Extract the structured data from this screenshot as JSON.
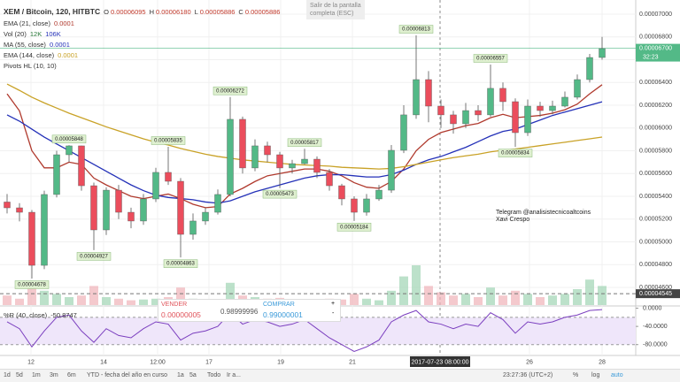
{
  "chart_data": [
    {
      "type": "candlestick",
      "title": "XEM / Bitcoin, 120, HITBTC",
      "ohlc_legend": [
        {
          "key": "O",
          "text": "0.00006095"
        },
        {
          "key": "H",
          "text": "0.00006180"
        },
        {
          "key": "L",
          "text": "0.00005886"
        },
        {
          "key": "C",
          "text": "0.00005886"
        }
      ],
      "open": [
        5.35e-05,
        5.299e-05,
        5.26e-05,
        4.794e-05,
        5.416e-05,
        5.765e-05,
        5.843e-05,
        5.493e-05,
        5.105e-05,
        5.454e-05,
        5.26e-05,
        5.183e-05,
        5.377e-05,
        5.61e-05,
        5.532e-05,
        5.066e-05,
        5.183e-05,
        5.26e-05,
        5.416e-05,
        6.076e-05,
        5.649e-05,
        5.843e-05,
        5.765e-05,
        5.649e-05,
        5.687e-05,
        5.726e-05,
        5.61e-05,
        5.493e-05,
        5.377e-05,
        5.26e-05,
        5.377e-05,
        5.454e-05,
        5.804e-05,
        6.115e-05,
        6.425e-05,
        6.192e-05,
        6.115e-05,
        6.037e-05,
        6.153e-05,
        6.115e-05,
        6.348e-05,
        6.231e-05,
        5.959e-05,
        6.192e-05,
        6.153e-05,
        6.192e-05,
        6.27e-05,
        6.425e-05,
        6.619e-05
      ],
      "high": [
        5.42e-05,
        5.34e-05,
        5.28e-05,
        5.45e-05,
        5.8e-05,
        5.848e-05,
        5.845e-05,
        5.52e-05,
        5.48e-05,
        5.5e-05,
        5.3e-05,
        5.42e-05,
        5.65e-05,
        5.835e-05,
        5.56e-05,
        5.25e-05,
        5.3e-05,
        5.46e-05,
        6.272e-05,
        6.1e-05,
        5.9e-05,
        5.88e-05,
        5.79e-05,
        5.72e-05,
        5.817e-05,
        5.75e-05,
        5.64e-05,
        5.51e-05,
        5.4e-05,
        5.42e-05,
        5.5e-05,
        5.85e-05,
        6.2e-05,
        6.813e-05,
        6.5e-05,
        6.25e-05,
        6.15e-05,
        6.22e-05,
        6.2e-05,
        6.557e-05,
        6.4e-05,
        6.26e-05,
        6.25e-05,
        6.23e-05,
        6.24e-05,
        6.32e-05,
        6.47e-05,
        6.65e-05,
        6.8e-05
      ],
      "low": [
        5.25e-05,
        5.18e-05,
        4.678e-05,
        4.76e-05,
        5.39e-05,
        5.7e-05,
        5.45e-05,
        4.927e-05,
        5.06e-05,
        5.2e-05,
        5.12e-05,
        5.15e-05,
        5.35e-05,
        5.5e-05,
        4.863e-05,
        5.02e-05,
        5.15e-05,
        5.24e-05,
        5.4e-05,
        5.6e-05,
        5.62e-05,
        5.7e-05,
        5.473e-05,
        5.6e-05,
        5.68e-05,
        5.56e-05,
        5.45e-05,
        5.32e-05,
        5.184e-05,
        5.23e-05,
        5.36e-05,
        5.43e-05,
        5.78e-05,
        6.08e-05,
        6.05e-05,
        6e-05,
        5.95e-05,
        6e-05,
        6.06e-05,
        6.1e-05,
        6.15e-05,
        5.834e-05,
        5.93e-05,
        6.1e-05,
        6.12e-05,
        6.18e-05,
        6.25e-05,
        6.4e-05,
        6.6e-05
      ],
      "close": [
        5.299e-05,
        5.26e-05,
        4.794e-05,
        5.416e-05,
        5.765e-05,
        5.843e-05,
        5.493e-05,
        5.105e-05,
        5.454e-05,
        5.26e-05,
        5.183e-05,
        5.377e-05,
        5.61e-05,
        5.532e-05,
        5.066e-05,
        5.183e-05,
        5.26e-05,
        5.416e-05,
        6.076e-05,
        5.649e-05,
        5.843e-05,
        5.765e-05,
        5.649e-05,
        5.687e-05,
        5.726e-05,
        5.61e-05,
        5.493e-05,
        5.377e-05,
        5.26e-05,
        5.377e-05,
        5.454e-05,
        5.804e-05,
        6.115e-05,
        6.425e-05,
        6.192e-05,
        6.115e-05,
        6.037e-05,
        6.153e-05,
        6.115e-05,
        6.348e-05,
        6.231e-05,
        5.959e-05,
        6.192e-05,
        6.153e-05,
        6.192e-05,
        6.27e-05,
        6.425e-05,
        6.619e-05,
        6.697e-05
      ],
      "up_color": "#53b987",
      "down_color": "#eb4d5c",
      "volume_name": "Vol (20)",
      "volume_legend": [
        "12K",
        "106K"
      ],
      "volume": [
        60000,
        40000,
        150000,
        90000,
        70000,
        50000,
        60000,
        120000,
        50000,
        40000,
        30000,
        35000,
        40000,
        50000,
        110000,
        40000,
        30000,
        35000,
        140000,
        60000,
        50000,
        40000,
        45000,
        30000,
        35000,
        30000,
        40000,
        35000,
        70000,
        40000,
        30000,
        90000,
        180000,
        250000,
        120000,
        80000,
        60000,
        70000,
        50000,
        110000,
        60000,
        90000,
        70000,
        50000,
        60000,
        70000,
        100000,
        160000,
        120000
      ],
      "series": [
        {
          "name": "EMA (21, close)",
          "legend_value": "0.0001",
          "color": "#b03a2e",
          "values": [
            6.3e-05,
            6.15e-05,
            5.8e-05,
            5.65e-05,
            5.65e-05,
            5.7e-05,
            5.68e-05,
            5.56e-05,
            5.5e-05,
            5.45e-05,
            5.4e-05,
            5.38e-05,
            5.4e-05,
            5.42e-05,
            5.38e-05,
            5.33e-05,
            5.3e-05,
            5.31e-05,
            5.42e-05,
            5.47e-05,
            5.53e-05,
            5.58e-05,
            5.6e-05,
            5.62e-05,
            5.64e-05,
            5.64e-05,
            5.62e-05,
            5.58e-05,
            5.52e-05,
            5.48e-05,
            5.47e-05,
            5.53e-05,
            5.64e-05,
            5.8e-05,
            5.9e-05,
            5.96e-05,
            5.99e-05,
            6.02e-05,
            6.04e-05,
            6.09e-05,
            6.12e-05,
            6.09e-05,
            6.1e-05,
            6.11e-05,
            6.13e-05,
            6.16e-05,
            6.21e-05,
            6.3e-05,
            6.38e-05
          ]
        },
        {
          "name": "MA (55, close)",
          "legend_value": "0.0001",
          "color": "#2431b8",
          "values": [
            6.115e-05,
            6.06e-05,
            5.99e-05,
            5.92e-05,
            5.86e-05,
            5.8e-05,
            5.74e-05,
            5.68e-05,
            5.62e-05,
            5.56e-05,
            5.5e-05,
            5.45e-05,
            5.41e-05,
            5.39e-05,
            5.38e-05,
            5.37e-05,
            5.35e-05,
            5.34e-05,
            5.36e-05,
            5.4e-05,
            5.44e-05,
            5.47e-05,
            5.5e-05,
            5.53e-05,
            5.56e-05,
            5.58e-05,
            5.59e-05,
            5.59e-05,
            5.58e-05,
            5.57e-05,
            5.57e-05,
            5.59e-05,
            5.63e-05,
            5.68e-05,
            5.72e-05,
            5.75e-05,
            5.79e-05,
            5.83e-05,
            5.88e-05,
            5.93e-05,
            5.97e-05,
            5.99e-05,
            6.03e-05,
            6.07e-05,
            6.11e-05,
            6.14e-05,
            6.17e-05,
            6.2e-05,
            6.23e-05
          ]
        },
        {
          "name": "EMA (144, close)",
          "legend_value": "0.0001",
          "color": "#c9a227",
          "values": [
            6.386e-05,
            6.33e-05,
            6.27e-05,
            6.22e-05,
            6.175e-05,
            6.13e-05,
            6.09e-05,
            6.05e-05,
            6.01e-05,
            5.975e-05,
            5.94e-05,
            5.905e-05,
            5.875e-05,
            5.85e-05,
            5.82e-05,
            5.795e-05,
            5.77e-05,
            5.75e-05,
            5.735e-05,
            5.72e-05,
            5.71e-05,
            5.7e-05,
            5.69e-05,
            5.68e-05,
            5.675e-05,
            5.67e-05,
            5.665e-05,
            5.655e-05,
            5.65e-05,
            5.645e-05,
            5.64e-05,
            5.645e-05,
            5.66e-05,
            5.68e-05,
            5.7e-05,
            5.72e-05,
            5.74e-05,
            5.755e-05,
            5.77e-05,
            5.79e-05,
            5.805e-05,
            5.815e-05,
            5.83e-05,
            5.845e-05,
            5.86e-05,
            5.875e-05,
            5.89e-05,
            5.905e-05,
            5.92e-05
          ]
        }
      ],
      "pivots_name": "Pivots HL (10, 10)",
      "annotations": [
        {
          "value": 5.848e-05,
          "label": "0.00005848"
        },
        {
          "value": 4.678e-05,
          "label": "0.00004678"
        },
        {
          "value": 4.927e-05,
          "label": "0.00004927"
        },
        {
          "value": 5.835e-05,
          "label": "0.00005835"
        },
        {
          "value": 4.863e-05,
          "label": "0.00004863"
        },
        {
          "value": 6.272e-05,
          "label": "0.00006272"
        },
        {
          "value": 5.473e-05,
          "label": "0.00005473"
        },
        {
          "value": 5.817e-05,
          "label": "0.00005817"
        },
        {
          "value": 5.184e-05,
          "label": "0.00005184"
        },
        {
          "value": 6.813e-05,
          "label": "0.00006813"
        },
        {
          "value": 6.557e-05,
          "label": "0.00006557"
        },
        {
          "value": 5.834e-05,
          "label": "0.00005834"
        }
      ],
      "ylim": [
        4.445e-05,
        7.085e-05
      ],
      "yticks": [
        {
          "value": 7e-05,
          "label": "0.00007000"
        },
        {
          "value": 6.8e-05,
          "label": "0.00006800"
        },
        {
          "value": 6.6e-05,
          "label": "0.00006600"
        },
        {
          "value": 6.4e-05,
          "label": "0.00006400"
        },
        {
          "value": 6.2e-05,
          "label": "0.00006200"
        },
        {
          "value": 6e-05,
          "label": "0.00006000"
        },
        {
          "value": 5.8e-05,
          "label": "0.00005800"
        },
        {
          "value": 5.6e-05,
          "label": "0.00005600"
        },
        {
          "value": 5.4e-05,
          "label": "0.00005400"
        },
        {
          "value": 5.2e-05,
          "label": "0.00005200"
        },
        {
          "value": 5e-05,
          "label": "0.00005000"
        },
        {
          "value": 4.8e-05,
          "label": "0.00004800"
        },
        {
          "value": 4.6e-05,
          "label": "0.00004600"
        }
      ],
      "last": {
        "value": 6.7e-05,
        "label": "0.00006700",
        "countdown": "32:23"
      },
      "hline": {
        "value": 4.545e-05,
        "label": "0.00004545"
      },
      "grid": true
    },
    {
      "type": "line",
      "name": "%R (40, close)",
      "legend_value": "-50.8747",
      "color": "#7b3fbf",
      "values": [
        -30,
        -45,
        -85,
        -50,
        -20,
        -15,
        -50,
        -75,
        -45,
        -60,
        -65,
        -45,
        -30,
        -35,
        -70,
        -55,
        -50,
        -40,
        -10,
        -35,
        -25,
        -30,
        -40,
        -35,
        -25,
        -45,
        -65,
        -80,
        -95,
        -85,
        -70,
        -30,
        -15,
        -5,
        -30,
        -35,
        -45,
        -35,
        -40,
        -10,
        -25,
        -55,
        -30,
        -35,
        -30,
        -20,
        -15,
        -5,
        -3
      ],
      "ylim": [
        -100,
        3
      ],
      "yticks": [
        {
          "value": 0,
          "label": "0.0000"
        },
        {
          "value": -40,
          "label": "-40.0000"
        },
        {
          "value": -80,
          "label": "-80.0000"
        }
      ],
      "band": [
        -20,
        -80
      ]
    }
  ],
  "ui": {
    "tooltip": [
      "Salir de la pantalla",
      "completa (ESC)"
    ],
    "order": {
      "sell": "VENDER",
      "sell_price": "0.00000005",
      "mid": "0.98999996",
      "buy": "COMPRAR",
      "buy_price": "0.99000001",
      "minus": "-",
      "plus": "+"
    },
    "watermark": [
      "Telegram @analisistecnicoaltcoins",
      "Xavi Crespo"
    ],
    "x_labels": [
      "12",
      "14",
      "12:00",
      "17",
      "19",
      "21",
      "2017-07-23 08:00:00",
      "26",
      "28"
    ],
    "toolbar": [
      "1d",
      "5d",
      "1m",
      "3m",
      "6m",
      "YTD - fecha del año en curso",
      "1a",
      "5a",
      "Todo",
      "Ir a..."
    ],
    "clock": "23:27:36 (UTC+2)",
    "toolbar_right": [
      "%",
      "log",
      "auto"
    ]
  }
}
